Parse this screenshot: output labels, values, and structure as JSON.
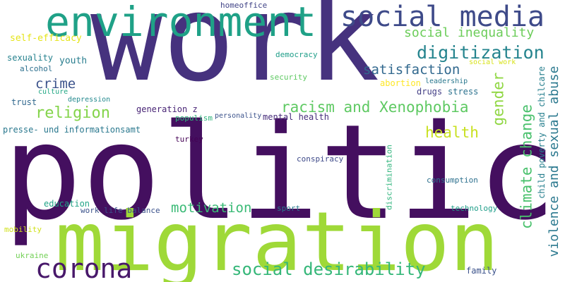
{
  "words": {
    "work": {
      "text": "work",
      "color": "#46327e"
    },
    "politics": {
      "text": "politics",
      "color": "#440f5f"
    },
    "migration": {
      "text": "migration",
      "color": "#9fd938"
    },
    "environment": {
      "text": "environment",
      "color": "#1fa187"
    },
    "social_media": {
      "text": "social media",
      "color": "#3e4a89"
    },
    "corona": {
      "text": "corona",
      "color": "#48186a"
    },
    "social_desirability": {
      "text": "social desirability",
      "color": "#35b779"
    },
    "digitization": {
      "text": "digitization",
      "color": "#25848e"
    },
    "social_inequality": {
      "text": "social inequality",
      "color": "#6ccd5a"
    },
    "satisfaction": {
      "text": "satisfaction",
      "color": "#31688e"
    },
    "religion": {
      "text": "religion",
      "color": "#84d44b"
    },
    "crime": {
      "text": "crime",
      "color": "#3b528b"
    },
    "racism_and_xenophobia": {
      "text": "racism and Xenophobia",
      "color": "#5ec962"
    },
    "health": {
      "text": "health",
      "color": "#c8e020"
    },
    "gender": {
      "text": "gender",
      "color": "#90d743"
    },
    "climate_change": {
      "text": "climate change",
      "color": "#4ac16d"
    },
    "violence_and_sexual_abuse": {
      "text": "violence and sexual abuse",
      "color": "#2a788e"
    },
    "child_poverty_and_childcare": {
      "text": "child poverty and chilcare",
      "color": "#277f8e"
    },
    "discrimination": {
      "text": "discrimination",
      "color": "#2fb47c"
    },
    "motivation": {
      "text": "motivation",
      "color": "#3aba76"
    },
    "homeoffice": {
      "text": "homeoffice",
      "color": "#414487"
    },
    "self_efficacy": {
      "text": "self-efficacy",
      "color": "#e5e419"
    },
    "sexuality": {
      "text": "sexuality",
      "color": "#26828e"
    },
    "youth": {
      "text": "youth",
      "color": "#287d8e"
    },
    "alcohol": {
      "text": "alcohol",
      "color": "#2d708e"
    },
    "culture": {
      "text": "culture",
      "color": "#22a884"
    },
    "depression": {
      "text": "depression",
      "color": "#23898e"
    },
    "trust": {
      "text": "trust",
      "color": "#31688e"
    },
    "presse": {
      "text": "presse- und informationsamt",
      "color": "#2a788e"
    },
    "generation_z": {
      "text": "generation z",
      "color": "#482475"
    },
    "populism": {
      "text": "populism",
      "color": "#2fb47c"
    },
    "turkey": {
      "text": "turkey",
      "color": "#440154"
    },
    "personality": {
      "text": "personality",
      "color": "#3b528b"
    },
    "mental_health": {
      "text": "mental health",
      "color": "#472d7b"
    },
    "democracy": {
      "text": "democracy",
      "color": "#1f9e89"
    },
    "security": {
      "text": "security",
      "color": "#5ec962"
    },
    "abortion": {
      "text": "abortion",
      "color": "#fde725"
    },
    "leadership": {
      "text": "leadership",
      "color": "#2a788e"
    },
    "social_work": {
      "text": "social work",
      "color": "#d8e219"
    },
    "drugs": {
      "text": "drugs",
      "color": "#433e85"
    },
    "stress": {
      "text": "stress",
      "color": "#2c728e"
    },
    "conspiracy": {
      "text": "conspiracy",
      "color": "#3e4a89"
    },
    "consumption": {
      "text": "consumption",
      "color": "#2d708e"
    },
    "education": {
      "text": "education",
      "color": "#20a386"
    },
    "work_life_balance": {
      "text": "work life balance",
      "color": "#3b528b"
    },
    "sport": {
      "text": "sport",
      "color": "#2a788e"
    },
    "technology": {
      "text": "technology",
      "color": "#1f9e89"
    },
    "mobility": {
      "text": "mobility",
      "color": "#d0e11c"
    },
    "ukraine": {
      "text": "ukraine",
      "color": "#73d056"
    },
    "family": {
      "text": "family",
      "color": "#3b528b"
    }
  }
}
